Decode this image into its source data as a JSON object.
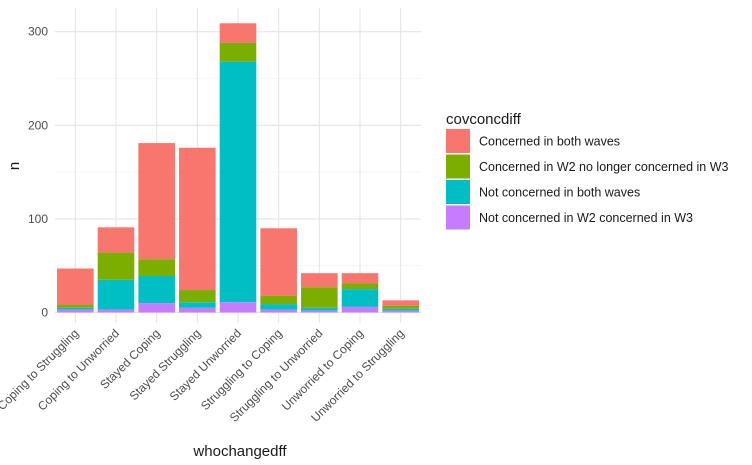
{
  "chart_data": {
    "type": "bar",
    "stacked": true,
    "xlabel": "whochangedff",
    "ylabel": "n",
    "ylim": [
      0,
      325
    ],
    "yticks": [
      0,
      100,
      200,
      300
    ],
    "grid": true,
    "legend_position": "right",
    "legend_title": "covconcdiff",
    "categories": [
      "Coping to Struggling",
      "Coping to Unworried",
      "Stayed Coping",
      "Stayed Struggling",
      "Stayed Unworried",
      "Struggling to Coping",
      "Struggling to Unworried",
      "Unworried to Coping",
      "Unworried to Struggling"
    ],
    "series": [
      {
        "name": "Not concerned in W2 concerned in W3",
        "color": "#C77CFF",
        "values": [
          3,
          3,
          10,
          5,
          11,
          3,
          2,
          6,
          2
        ]
      },
      {
        "name": "Not concerned in both waves",
        "color": "#00BFC4",
        "values": [
          2,
          32,
          29,
          6,
          257,
          6,
          3,
          19,
          2
        ]
      },
      {
        "name": "Concerned in W2 no longer concerned in W3",
        "color": "#7CAE00",
        "values": [
          3,
          29,
          18,
          13,
          20,
          9,
          22,
          6,
          3
        ]
      },
      {
        "name": "Concerned in both waves",
        "color": "#F8766D",
        "values": [
          39,
          27,
          124,
          152,
          21,
          72,
          15,
          11,
          6
        ]
      }
    ]
  }
}
